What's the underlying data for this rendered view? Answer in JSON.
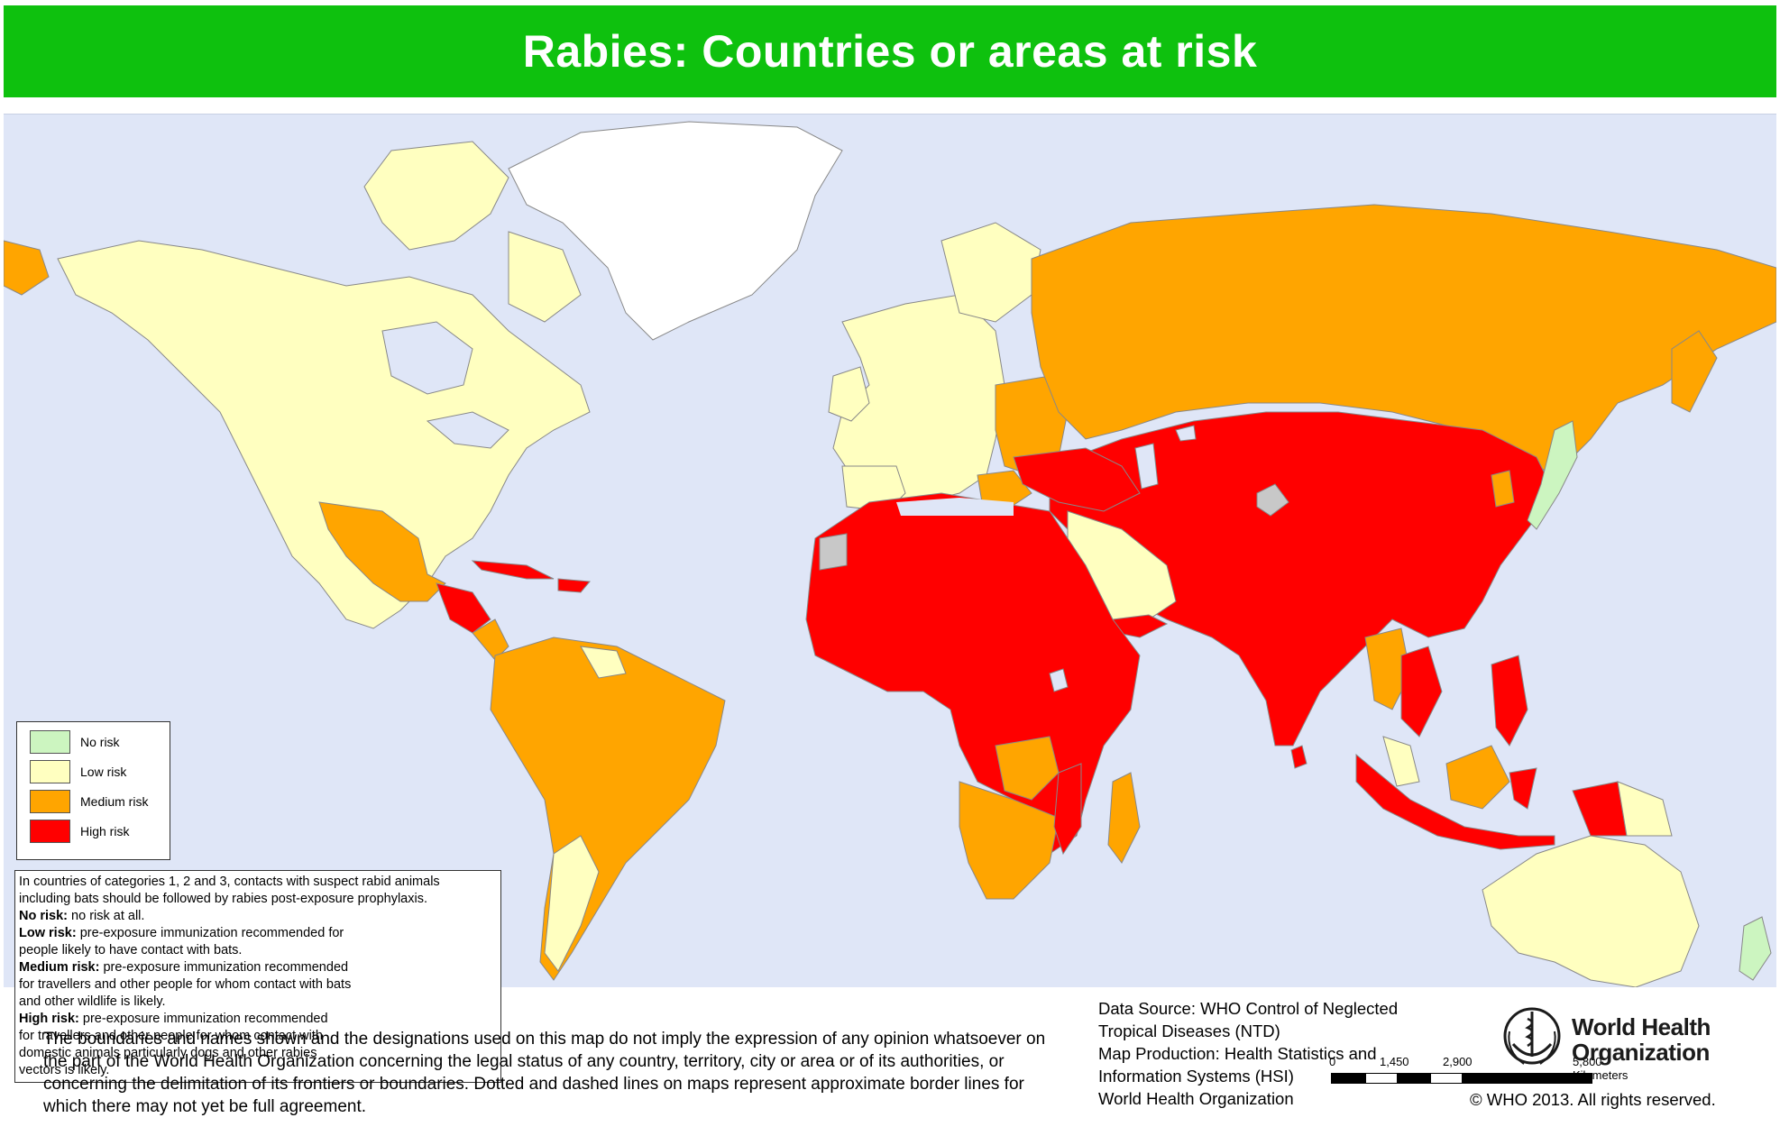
{
  "title": "Rabies: Countries or areas at risk",
  "legend": {
    "items": [
      {
        "label": "No risk",
        "color": "#ccf5c0"
      },
      {
        "label": "Low risk",
        "color": "#ffffc0"
      },
      {
        "label": "Medium risk",
        "color": "#ffa500"
      },
      {
        "label": "High risk",
        "color": "#ff0000"
      }
    ],
    "no_data_color": "#c8c8c8",
    "water_color": "#dfe6f7"
  },
  "notes": {
    "intro_1": "In countries of categories 1, 2 and 3, contacts with suspect rabid animals",
    "intro_2": "including bats should be followed by rabies post-exposure prophylaxis.",
    "no_risk_label": "No risk:",
    "no_risk_text": "no risk at all.",
    "low_risk_label": "Low risk:",
    "low_risk_text_1": "pre-exposure immunization recommended for",
    "low_risk_text_2": "people likely to have contact with bats.",
    "medium_risk_label": "Medium risk:",
    "medium_risk_text_1": "pre-exposure immunization recommended",
    "medium_risk_text_2": "for travellers and other people for whom contact with bats",
    "medium_risk_text_3": "and other wildlife is likely.",
    "high_risk_label": "High risk:",
    "high_risk_text_1": "pre-exposure immunization recommended",
    "high_risk_text_2": "for travellers and other people for whom contact with",
    "high_risk_text_3": "domestic animals particularly dogs and other rabies",
    "high_risk_text_4": "vectors is likely."
  },
  "scale": {
    "labels": [
      "0",
      "1,450",
      "2,900",
      "5,800 Kilometers"
    ]
  },
  "disclaimer": "The boundaries and names shown and the designations used on this map do not imply the expression of any opinion whatsoever on the part of the World Health Organization concerning the legal status of any country, territory, city or area or of its authorities, or concerning the delimitation of its frontiers or boundaries. Dotted and dashed lines on maps represent approximate border lines for which there may not yet be full agreement.",
  "source": {
    "line_1": "Data Source: WHO Control of Neglected",
    "line_2": "Tropical Diseases (NTD)",
    "line_3": "Map Production: Health Statistics and",
    "line_4": "Information Systems (HSI)",
    "line_5": "World Health Organization"
  },
  "who_logo": {
    "line_1": "World Health",
    "line_2": "Organization",
    "icon": "who-emblem-icon"
  },
  "copyright": "© WHO 2013. All rights reserved."
}
